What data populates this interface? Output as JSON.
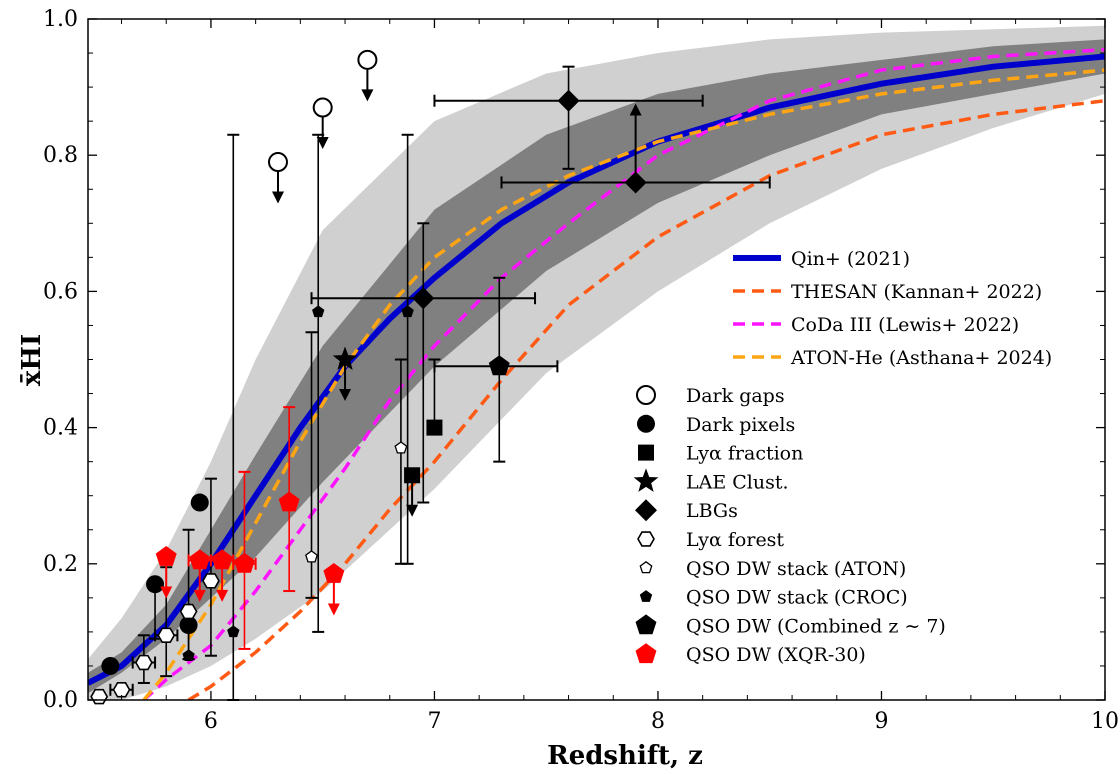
{
  "chart_data": {
    "type": "scatter",
    "xlabel": "Redshift, z",
    "ylabel": "x̄HI",
    "xlim": [
      5.45,
      10.0
    ],
    "ylim": [
      0.0,
      1.0
    ],
    "x_ticks": [
      6,
      7,
      8,
      9,
      10
    ],
    "y_ticks": [
      0.0,
      0.2,
      0.4,
      0.6,
      0.8,
      1.0
    ],
    "grid": false,
    "legend_position": "right",
    "bands": [
      {
        "name": "outer",
        "x": [
          5.45,
          5.6,
          5.8,
          6.0,
          6.2,
          6.5,
          7.0,
          7.5,
          8.0,
          8.5,
          9.0,
          9.5,
          10.0
        ],
        "lower": [
          0.0,
          0.0,
          0.02,
          0.05,
          0.09,
          0.16,
          0.31,
          0.48,
          0.6,
          0.7,
          0.78,
          0.84,
          0.89
        ],
        "upper": [
          0.06,
          0.12,
          0.22,
          0.35,
          0.5,
          0.69,
          0.85,
          0.92,
          0.95,
          0.97,
          0.98,
          0.985,
          0.99
        ],
        "color": "#d0d0d0"
      },
      {
        "name": "inner",
        "x": [
          5.45,
          5.6,
          5.8,
          6.0,
          6.2,
          6.5,
          7.0,
          7.5,
          8.0,
          8.5,
          9.0,
          9.5,
          10.0
        ],
        "lower": [
          0.01,
          0.04,
          0.09,
          0.15,
          0.21,
          0.32,
          0.49,
          0.63,
          0.73,
          0.8,
          0.86,
          0.89,
          0.92
        ],
        "upper": [
          0.04,
          0.07,
          0.14,
          0.25,
          0.36,
          0.52,
          0.72,
          0.83,
          0.89,
          0.92,
          0.94,
          0.96,
          0.97
        ],
        "color": "#808080"
      }
    ],
    "series": [
      {
        "name": "Qin+ (2021)",
        "style": "solid",
        "color": "#0000cc",
        "x": [
          5.45,
          5.6,
          5.8,
          6.0,
          6.2,
          6.4,
          6.6,
          6.8,
          7.0,
          7.3,
          7.6,
          8.0,
          8.5,
          9.0,
          9.5,
          10.0
        ],
        "y": [
          0.025,
          0.05,
          0.11,
          0.2,
          0.3,
          0.4,
          0.49,
          0.56,
          0.62,
          0.7,
          0.76,
          0.82,
          0.87,
          0.905,
          0.93,
          0.945
        ]
      },
      {
        "name": "THESAN (Kannan+ 2022)",
        "style": "dashed",
        "color": "#ff5a14",
        "x": [
          5.9,
          6.0,
          6.2,
          6.4,
          6.6,
          6.8,
          7.0,
          7.3,
          7.6,
          8.0,
          8.5,
          9.0,
          9.5,
          10.0
        ],
        "y": [
          0.0,
          0.02,
          0.07,
          0.13,
          0.2,
          0.28,
          0.35,
          0.47,
          0.58,
          0.68,
          0.77,
          0.83,
          0.86,
          0.88
        ]
      },
      {
        "name": "CoDa III (Lewis+ 2022)",
        "style": "dashed",
        "color": "#ff14ff",
        "x": [
          5.7,
          5.8,
          6.0,
          6.2,
          6.4,
          6.6,
          6.8,
          7.0,
          7.3,
          7.6,
          8.0,
          8.5,
          9.0,
          9.5,
          10.0
        ],
        "y": [
          0.0,
          0.03,
          0.08,
          0.16,
          0.25,
          0.34,
          0.44,
          0.52,
          0.62,
          0.7,
          0.8,
          0.88,
          0.925,
          0.945,
          0.955
        ]
      },
      {
        "name": "ATON-He (Asthana+ 2024)",
        "style": "dashed",
        "color": "#ffa514",
        "x": [
          5.7,
          5.8,
          6.0,
          6.2,
          6.4,
          6.6,
          6.8,
          7.0,
          7.3,
          7.6,
          8.0,
          8.5,
          9.0,
          9.5,
          10.0
        ],
        "y": [
          0.0,
          0.04,
          0.14,
          0.26,
          0.38,
          0.49,
          0.58,
          0.65,
          0.72,
          0.77,
          0.82,
          0.86,
          0.89,
          0.91,
          0.925
        ]
      }
    ],
    "points": [
      {
        "group": "Dark gaps",
        "marker": "circle-open",
        "x": 6.3,
        "y": 0.79,
        "upper_limit": true
      },
      {
        "group": "Dark gaps",
        "marker": "circle-open",
        "x": 6.5,
        "y": 0.87,
        "upper_limit": true
      },
      {
        "group": "Dark gaps",
        "marker": "circle-open",
        "x": 6.7,
        "y": 0.94,
        "upper_limit": true
      },
      {
        "group": "Dark pixels",
        "marker": "circle",
        "x": 5.55,
        "y": 0.05,
        "yerr": [
          0.0,
          0.0
        ]
      },
      {
        "group": "Dark pixels",
        "marker": "circle",
        "x": 5.75,
        "y": 0.17,
        "yerr": [
          0.08,
          0.0
        ]
      },
      {
        "group": "Dark pixels",
        "marker": "circle",
        "x": 5.95,
        "y": 0.29,
        "yerr": [
          0.0,
          0.0
        ]
      },
      {
        "group": "Dark pixels",
        "marker": "circle",
        "x": 5.9,
        "y": 0.11,
        "yerr": [
          0.05,
          0.0
        ]
      },
      {
        "group": "Lyα fraction",
        "marker": "square",
        "x": 6.9,
        "y": 0.33,
        "upper_limit": true
      },
      {
        "group": "Lyα fraction",
        "marker": "square",
        "x": 7.0,
        "y": 0.4,
        "yerr": [
          0.0,
          0.1
        ]
      },
      {
        "group": "LAE Clust.",
        "marker": "star",
        "x": 6.6,
        "y": 0.5,
        "upper_limit": true
      },
      {
        "group": "LBGs",
        "marker": "diamond",
        "x": 7.6,
        "y": 0.88,
        "xerr": [
          0.6,
          0.6
        ],
        "yerr": [
          0.1,
          0.05
        ]
      },
      {
        "group": "LBGs",
        "marker": "diamond",
        "x": 7.9,
        "y": 0.76,
        "xerr": [
          0.6,
          0.6
        ],
        "lower_limit": true
      },
      {
        "group": "LBGs",
        "marker": "diamond",
        "x": 6.95,
        "y": 0.59,
        "xerr": [
          0.5,
          0.5
        ],
        "yerr": [
          0.3,
          0.11
        ]
      },
      {
        "group": "Lyα forest",
        "marker": "hexagon-open",
        "x": 5.5,
        "y": 0.005
      },
      {
        "group": "Lyα forest",
        "marker": "hexagon-open",
        "x": 5.6,
        "y": 0.015,
        "xerr": [
          0.05,
          0.05
        ]
      },
      {
        "group": "Lyα forest",
        "marker": "hexagon-open",
        "x": 5.7,
        "y": 0.055,
        "xerr": [
          0.05,
          0.05
        ],
        "yerr": [
          0.03,
          0.04
        ]
      },
      {
        "group": "Lyα forest",
        "marker": "hexagon-open",
        "x": 5.8,
        "y": 0.095,
        "xerr": [
          0.05,
          0.05
        ],
        "yerr": [
          0.06,
          0.1
        ]
      },
      {
        "group": "Lyα forest",
        "marker": "hexagon-open",
        "x": 5.9,
        "y": 0.13,
        "yerr": [
          0.07,
          0.12
        ]
      },
      {
        "group": "Lyα forest",
        "marker": "hexagon-open",
        "x": 6.0,
        "y": 0.175,
        "yerr": [
          0.11,
          0.15
        ]
      },
      {
        "group": "QSO DW stack (ATON)",
        "marker": "pentagon-open",
        "x": 6.45,
        "y": 0.21,
        "yerr": [
          0.06,
          0.33
        ]
      },
      {
        "group": "QSO DW stack (ATON)",
        "marker": "pentagon-open",
        "x": 6.85,
        "y": 0.37,
        "yerr": [
          0.17,
          0.13
        ]
      },
      {
        "group": "QSO DW stack (CROC)",
        "marker": "pentagon",
        "x": 6.1,
        "y": 0.1,
        "yerr": [
          0.1,
          0.73
        ]
      },
      {
        "group": "QSO DW stack (CROC)",
        "marker": "pentagon",
        "x": 6.48,
        "y": 0.57,
        "yerr": [
          0.47,
          0.26
        ]
      },
      {
        "group": "QSO DW stack (CROC)",
        "marker": "pentagon",
        "x": 6.88,
        "y": 0.57,
        "yerr": [
          0.37,
          0.26
        ]
      },
      {
        "group": "QSO DW stack (CROC)",
        "marker": "pentagon",
        "x": 5.9,
        "y": 0.065
      },
      {
        "group": "QSO DW (Combined z ~ 7)",
        "marker": "pentagon-big",
        "x": 7.29,
        "y": 0.49,
        "xerr": [
          0.29,
          0.26
        ],
        "yerr": [
          0.14,
          0.13
        ]
      },
      {
        "group": "QSO DW (XQR-30)",
        "marker": "pentagon-red",
        "x": 5.8,
        "y": 0.21,
        "upper_limit": true
      },
      {
        "group": "QSO DW (XQR-30)",
        "marker": "pentagon-red",
        "x": 5.95,
        "y": 0.205,
        "xerr": [
          0.05,
          0.05
        ],
        "upper_limit": true
      },
      {
        "group": "QSO DW (XQR-30)",
        "marker": "pentagon-red",
        "x": 6.05,
        "y": 0.205,
        "xerr": [
          0.05,
          0.05
        ],
        "upper_limit": true
      },
      {
        "group": "QSO DW (XQR-30)",
        "marker": "pentagon-red",
        "x": 6.15,
        "y": 0.2,
        "xerr": [
          0.05,
          0.05
        ],
        "yerr": [
          0.125,
          0.135
        ]
      },
      {
        "group": "QSO DW (XQR-30)",
        "marker": "pentagon-red",
        "x": 6.35,
        "y": 0.29,
        "yerr": [
          0.13,
          0.14
        ]
      },
      {
        "group": "QSO DW (XQR-30)",
        "marker": "pentagon-red",
        "x": 6.55,
        "y": 0.185,
        "upper_limit": true
      }
    ],
    "legend": {
      "lines": [
        {
          "label": "Qin+ (2021)",
          "color": "#0000cc",
          "style": "solid"
        },
        {
          "label": "THESAN (Kannan+ 2022)",
          "color": "#ff5a14",
          "style": "dashed"
        },
        {
          "label": "CoDa III (Lewis+ 2022)",
          "color": "#ff14ff",
          "style": "dashed"
        },
        {
          "label": "ATON-He (Asthana+ 2024)",
          "color": "#ffa514",
          "style": "dashed"
        }
      ],
      "markers": [
        {
          "label": "Dark gaps",
          "marker": "circle-open"
        },
        {
          "label": "Dark pixels",
          "marker": "circle"
        },
        {
          "label": "Lyα fraction",
          "marker": "square"
        },
        {
          "label": "LAE Clust.",
          "marker": "star"
        },
        {
          "label": "LBGs",
          "marker": "diamond"
        },
        {
          "label": "Lyα forest",
          "marker": "hexagon-open"
        },
        {
          "label": "QSO DW stack (ATON)",
          "marker": "pentagon-open"
        },
        {
          "label": "QSO DW stack (CROC)",
          "marker": "pentagon"
        },
        {
          "label": "QSO DW (Combined z ∼ 7)",
          "marker": "pentagon-big"
        },
        {
          "label": "QSO DW (XQR-30)",
          "marker": "pentagon-red"
        }
      ]
    }
  }
}
